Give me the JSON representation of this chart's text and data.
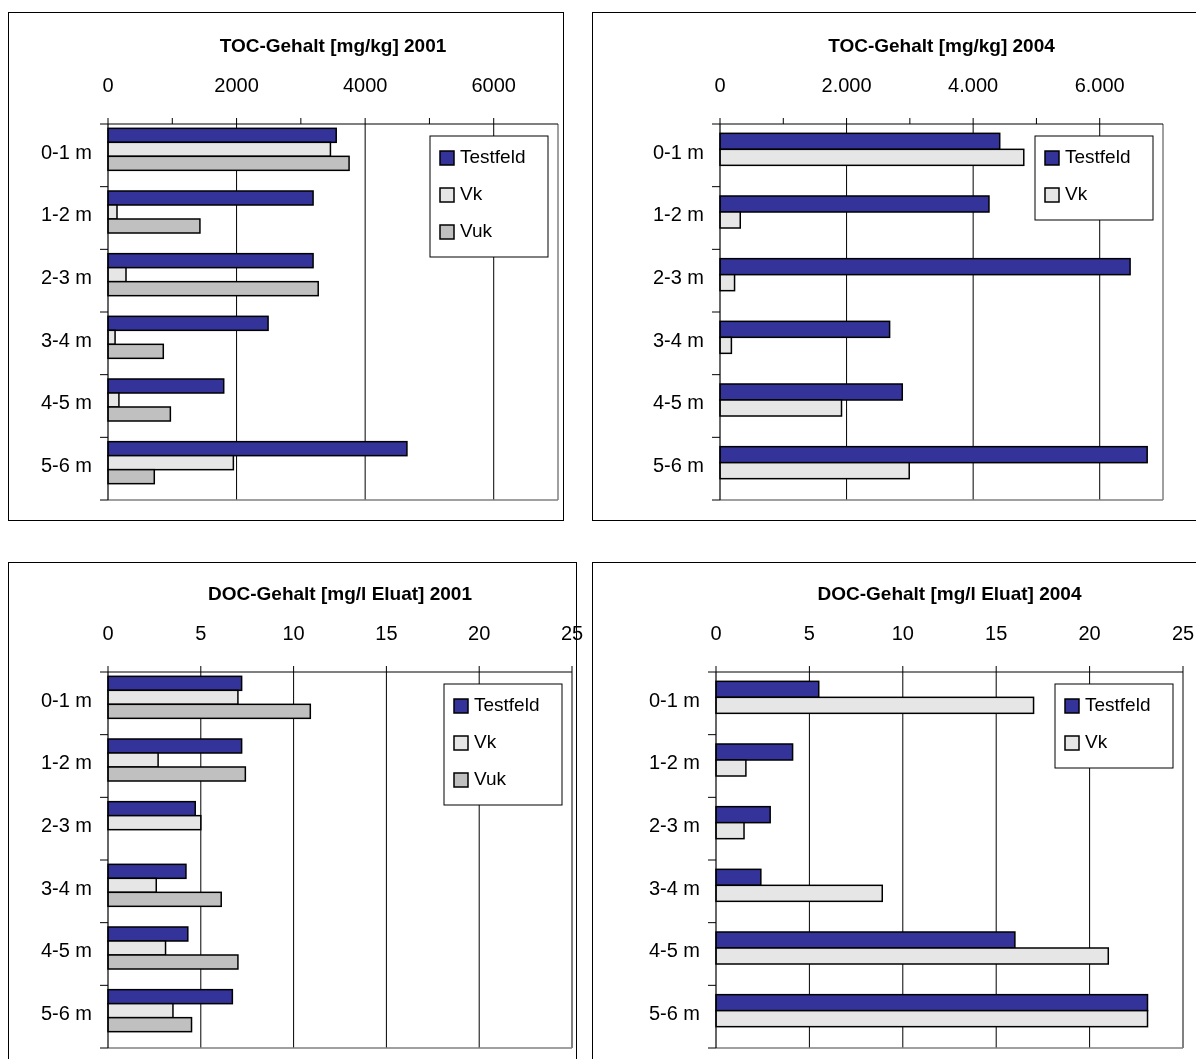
{
  "chart_data": [
    {
      "type": "bar",
      "orientation": "horizontal",
      "title": "TOC-Gehalt [mg/kg] 2001",
      "categories": [
        "0-1 m",
        "1-2 m",
        "2-3 m",
        "3-4 m",
        "4-5 m",
        "5-6 m"
      ],
      "series": [
        {
          "name": "Testfeld",
          "color": "#333399",
          "values": [
            3550,
            3190,
            3190,
            2490,
            1800,
            4650
          ]
        },
        {
          "name": "Vk",
          "color": "#e6e6e6",
          "values": [
            3460,
            140,
            280,
            110,
            170,
            1950
          ]
        },
        {
          "name": "Vuk",
          "color": "#c0c0c0",
          "values": [
            3750,
            1430,
            3270,
            860,
            970,
            720
          ]
        }
      ],
      "xlim": [
        0,
        7000
      ],
      "xticks": [
        0,
        {
          "value": 1000,
          "label": null
        },
        2000,
        {
          "value": 3000,
          "label": null
        },
        4000,
        {
          "value": 5000,
          "label": null
        },
        6000
      ],
      "grid": "x",
      "legend": "top right"
    },
    {
      "type": "bar",
      "orientation": "horizontal",
      "title": "TOC-Gehalt [mg/kg] 2004",
      "categories": [
        "0-1 m",
        "1-2 m",
        "2-3 m",
        "3-4 m",
        "4-5 m",
        "5-6 m"
      ],
      "series": [
        {
          "name": "Testfeld",
          "color": "#333399",
          "values": [
            4420,
            4250,
            6480,
            2680,
            2880,
            6750
          ]
        },
        {
          "name": "Vk",
          "color": "#e6e6e6",
          "values": [
            4800,
            320,
            230,
            180,
            1920,
            2990
          ]
        }
      ],
      "xlim": [
        0,
        7000
      ],
      "xticks": [
        {
          "value": 0,
          "label": "0"
        },
        {
          "value": 1000,
          "label": null
        },
        {
          "value": 2000,
          "label": "2.000"
        },
        {
          "value": 3000,
          "label": null
        },
        {
          "value": 4000,
          "label": "4.000"
        },
        {
          "value": 5000,
          "label": null
        },
        {
          "value": 6000,
          "label": "6.000"
        }
      ],
      "grid": "x",
      "legend": "top right"
    },
    {
      "type": "bar",
      "orientation": "horizontal",
      "title": "DOC-Gehalt [mg/l Eluat] 2001",
      "categories": [
        "0-1 m",
        "1-2 m",
        "2-3 m",
        "3-4 m",
        "4-5 m",
        "5-6 m"
      ],
      "series": [
        {
          "name": "Testfeld",
          "color": "#333399",
          "values": [
            7.2,
            7.2,
            4.7,
            4.2,
            4.3,
            6.7
          ]
        },
        {
          "name": "Vk",
          "color": "#e6e6e6",
          "values": [
            7.0,
            2.7,
            5.0,
            2.6,
            3.1,
            3.5
          ]
        },
        {
          "name": "Vuk",
          "color": "#c0c0c0",
          "values": [
            10.9,
            7.4,
            null,
            6.1,
            7.0,
            4.5
          ]
        }
      ],
      "xlim": [
        0,
        25
      ],
      "xticks": [
        0,
        5,
        10,
        15,
        20,
        25
      ],
      "grid": "x",
      "legend": "top right"
    },
    {
      "type": "bar",
      "orientation": "horizontal",
      "title": "DOC-Gehalt [mg/l Eluat] 2004",
      "categories": [
        "0-1 m",
        "1-2 m",
        "2-3 m",
        "3-4 m",
        "4-5 m",
        "5-6 m"
      ],
      "series": [
        {
          "name": "Testfeld",
          "color": "#333399",
          "values": [
            5.5,
            4.1,
            2.9,
            2.4,
            16.0,
            23.1
          ]
        },
        {
          "name": "Vk",
          "color": "#e6e6e6",
          "values": [
            17.0,
            1.6,
            1.5,
            8.9,
            21.0,
            23.1
          ]
        }
      ],
      "xlim": [
        0,
        25
      ],
      "xticks": [
        0,
        5,
        10,
        15,
        20,
        25
      ],
      "grid": "x",
      "legend": "top right"
    }
  ]
}
